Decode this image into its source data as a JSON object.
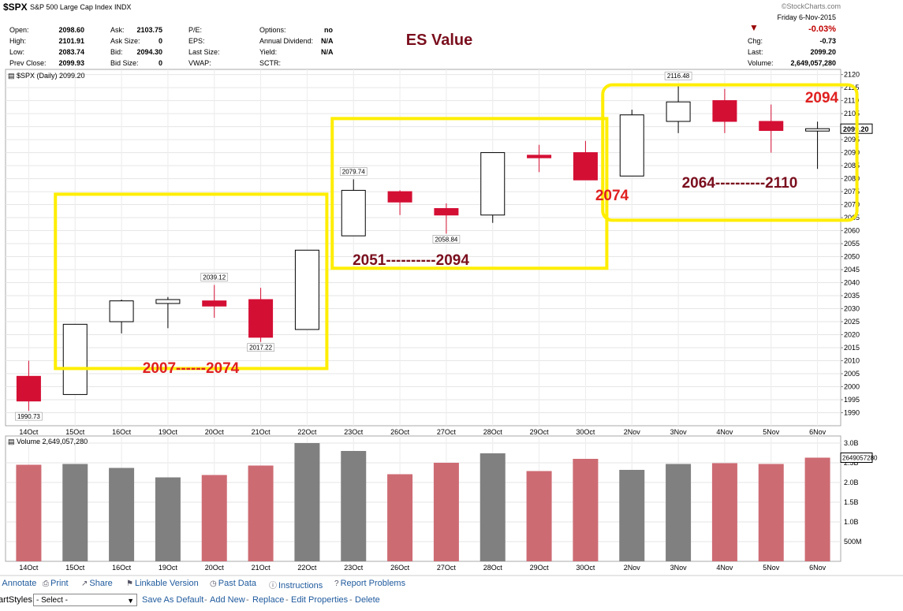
{
  "header": {
    "symbol": "$SPX",
    "name": "S&P 500 Large Cap Index",
    "exchange": "INDX",
    "watermark": "©StockCharts.com",
    "date": "Friday  6-Nov-2015",
    "change_pct": "-0.03%",
    "chg_label": "Chg:",
    "chg_value": "-0.73",
    "last_label": "Last:",
    "last_value": "2099.20",
    "volume_label": "Volume:",
    "volume_value": "2,649,057,280",
    "down_arrow_color": "#990000",
    "quote": {
      "open_label": "Open:",
      "open": "2098.60",
      "high_label": "High:",
      "high": "2101.91",
      "low_label": "Low:",
      "low": "2083.74",
      "prev_close_label": "Prev Close:",
      "prev_close": "2099.93",
      "ask_label": "Ask:",
      "ask": "2103.75",
      "ask_size_label": "Ask Size:",
      "ask_size": "0",
      "bid_label": "Bid:",
      "bid": "2094.30",
      "bid_size_label": "Bid Size:",
      "bid_size": "0",
      "pe_label": "P/E:",
      "eps_label": "EPS:",
      "last_size_label": "Last Size:",
      "vwap_label": "VWAP:",
      "options_label": "Options:",
      "options": "no",
      "dividend_label": "Annual Dividend:",
      "dividend": "N/A",
      "yield_label": "Yield:",
      "yield": "N/A",
      "sctr_label": "SCTR:"
    }
  },
  "chart_data": {
    "type": "candlestick",
    "price_title": "$SPX (Daily) 2099.20",
    "volume_title": "Volume 2,649,057,280",
    "last_price_label": "2099.20",
    "volume_last_label": "2649057280",
    "colors": {
      "up": "#ffffff",
      "down": "#d40f34",
      "outline": "#000000",
      "vol_up": "#808080",
      "vol_down": "#cd6b73",
      "annotation": "#ffee00"
    },
    "price_axis": {
      "min": 1985,
      "max": 2122,
      "ticks": [
        1990,
        1995,
        2000,
        2005,
        2010,
        2015,
        2020,
        2025,
        2030,
        2035,
        2040,
        2045,
        2050,
        2055,
        2060,
        2065,
        2070,
        2075,
        2080,
        2085,
        2090,
        2095,
        2100,
        2105,
        2110,
        2115,
        2120
      ]
    },
    "volume_axis": {
      "min": 0,
      "max": 3.1,
      "ticks": [
        {
          "v": 0.5,
          "label": "500M"
        },
        {
          "v": 1.0,
          "label": "1.0B"
        },
        {
          "v": 1.5,
          "label": "1.5B"
        },
        {
          "v": 2.0,
          "label": "2.0B"
        },
        {
          "v": 2.5,
          "label": "2.5B"
        },
        {
          "v": 3.0,
          "label": "3.0B"
        }
      ]
    },
    "dates": [
      "14Oct",
      "15Oct",
      "16Oct",
      "19Oct",
      "20Oct",
      "21Oct",
      "22Oct",
      "23Oct",
      "26Oct",
      "27Oct",
      "28Oct",
      "29Oct",
      "30Oct",
      "2Nov",
      "3Nov",
      "4Nov",
      "5Nov",
      "6Nov"
    ],
    "candles": [
      {
        "date": "14Oct",
        "open": 2004,
        "high": 2010,
        "low": 1990.73,
        "close": 1994.5
      },
      {
        "date": "15Oct",
        "open": 1997,
        "high": 2024,
        "low": 1997,
        "close": 2024
      },
      {
        "date": "16Oct",
        "open": 2025,
        "high": 2033.5,
        "low": 2020.5,
        "close": 2033
      },
      {
        "date": "19Oct",
        "open": 2032,
        "high": 2034.5,
        "low": 2022.5,
        "close": 2033.5
      },
      {
        "date": "20Oct",
        "open": 2033,
        "high": 2039.12,
        "low": 2026.5,
        "close": 2031
      },
      {
        "date": "21Oct",
        "open": 2033.5,
        "high": 2038,
        "low": 2017.22,
        "close": 2019
      },
      {
        "date": "22Oct",
        "open": 2022,
        "high": 2052.5,
        "low": 2022,
        "close": 2052.5
      },
      {
        "date": "23Oct",
        "open": 2058,
        "high": 2079.74,
        "low": 2058,
        "close": 2075.5
      },
      {
        "date": "26Oct",
        "open": 2075,
        "high": 2075.5,
        "low": 2066,
        "close": 2071
      },
      {
        "date": "27Oct",
        "open": 2068.5,
        "high": 2070.5,
        "low": 2058.84,
        "close": 2066
      },
      {
        "date": "28Oct",
        "open": 2066,
        "high": 2090,
        "low": 2063,
        "close": 2090
      },
      {
        "date": "29Oct",
        "open": 2089,
        "high": 2093,
        "low": 2082.5,
        "close": 2088
      },
      {
        "date": "30Oct",
        "open": 2090,
        "high": 2094.5,
        "low": 2079.5,
        "close": 2079.5
      },
      {
        "date": "2Nov",
        "open": 2081,
        "high": 2106.5,
        "low": 2081,
        "close": 2104.5
      },
      {
        "date": "3Nov",
        "open": 2102,
        "high": 2116.48,
        "low": 2097.5,
        "close": 2109.5
      },
      {
        "date": "4Nov",
        "open": 2110,
        "high": 2114.5,
        "low": 2097.5,
        "close": 2102
      },
      {
        "date": "5Nov",
        "open": 2102,
        "high": 2108.5,
        "low": 2090,
        "close": 2098.5
      },
      {
        "date": "6Nov",
        "open": 2098.6,
        "high": 2101.91,
        "low": 2083.74,
        "close": 2099.2
      }
    ],
    "volumes": [
      {
        "date": "14Oct",
        "v": 2.45,
        "up": false
      },
      {
        "date": "15Oct",
        "v": 2.47,
        "up": true
      },
      {
        "date": "16Oct",
        "v": 2.37,
        "up": true
      },
      {
        "date": "19Oct",
        "v": 2.13,
        "up": true
      },
      {
        "date": "20Oct",
        "v": 2.19,
        "up": false
      },
      {
        "date": "21Oct",
        "v": 2.43,
        "up": false
      },
      {
        "date": "22Oct",
        "v": 3.0,
        "up": true
      },
      {
        "date": "23Oct",
        "v": 2.8,
        "up": true
      },
      {
        "date": "26Oct",
        "v": 2.21,
        "up": false
      },
      {
        "date": "27Oct",
        "v": 2.5,
        "up": false
      },
      {
        "date": "28Oct",
        "v": 2.74,
        "up": true
      },
      {
        "date": "29Oct",
        "v": 2.29,
        "up": false
      },
      {
        "date": "30Oct",
        "v": 2.6,
        "up": false
      },
      {
        "date": "2Nov",
        "v": 2.32,
        "up": true
      },
      {
        "date": "3Nov",
        "v": 2.47,
        "up": true
      },
      {
        "date": "4Nov",
        "v": 2.49,
        "up": false
      },
      {
        "date": "5Nov",
        "v": 2.47,
        "up": false
      },
      {
        "date": "6Nov",
        "v": 2.63,
        "up": false
      }
    ],
    "value_labels": [
      {
        "index": 0,
        "value": 1990.73,
        "pos": "below",
        "text": "1990.73"
      },
      {
        "index": 4,
        "value": 2039.12,
        "pos": "above",
        "text": "2039.12"
      },
      {
        "index": 5,
        "value": 2017.22,
        "pos": "below",
        "text": "2017.22"
      },
      {
        "index": 7,
        "value": 2079.74,
        "pos": "above",
        "text": "2079.74"
      },
      {
        "index": 9,
        "value": 2058.84,
        "pos": "below",
        "text": "2058.84"
      },
      {
        "index": 14,
        "value": 2116.48,
        "pos": "above",
        "text": "2116.48"
      }
    ],
    "annotations": {
      "title": "ES Value",
      "boxes": [
        {
          "from": "15Oct",
          "to": "22Oct",
          "low": 2007,
          "high": 2074,
          "label": "2007------2074"
        },
        {
          "from": "23Oct",
          "to": "30Oct",
          "low": 2051,
          "high": 2094,
          "label": "2051----------2094"
        },
        {
          "from": "2Nov",
          "to": "6Nov",
          "low": 2064,
          "high": 2110,
          "label": "2064----------2110"
        }
      ],
      "extra_labels": [
        {
          "text": "2074",
          "near": "30Oct"
        },
        {
          "text": "2094",
          "near": "6Nov"
        }
      ]
    }
  },
  "footer": {
    "links": [
      {
        "icon": "✎",
        "label": "Annotate"
      },
      {
        "icon": "⎙",
        "label": "Print"
      },
      {
        "icon": "↗",
        "label": "Share"
      },
      {
        "icon": "⚑",
        "label": "Linkable Version"
      },
      {
        "icon": "◷",
        "label": "Past Data"
      },
      {
        "icon": "ⓘ",
        "label": "Instructions"
      },
      {
        "icon": "?",
        "label": "Report Problems"
      }
    ],
    "styles_label": "ChartStyles:",
    "styles_select": "- Select -",
    "style_links": [
      "Save As Default",
      "Add New",
      "Replace",
      "Edit Properties",
      "Delete"
    ]
  }
}
